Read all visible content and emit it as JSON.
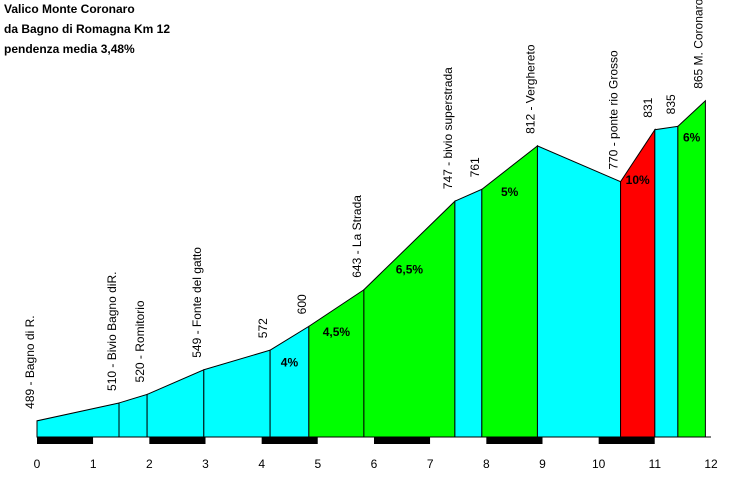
{
  "chart_data": {
    "type": "elevation-profile",
    "title": [
      "Valico Monte Coronaro",
      "da Bagno di Romagna Km 12",
      "pendenza media 3,48%"
    ],
    "x": [
      0,
      1.46,
      1.96,
      2.97,
      4.15,
      4.84,
      5.82,
      7.44,
      7.92,
      8.91,
      10.39,
      11.0,
      11.41,
      11.9
    ],
    "values": [
      489,
      510,
      520,
      549,
      572,
      600,
      643,
      747,
      761,
      812,
      770,
      831,
      835,
      865
    ],
    "labels": [
      "489 - Bagno di R.",
      "510 - Bivio Bagno diR.",
      "520 - Romitorio",
      "549 - Fonte del gatto",
      "572",
      "600",
      "643 - La Strada",
      "747 - bivio superstrada",
      "761",
      "812 - Verghereto",
      "770 - ponte rio Grosso",
      "831",
      "835",
      "865 M. Coronaro"
    ],
    "segment_colors": [
      "#00ffff",
      "#00ffff",
      "#00ffff",
      "#00ffff",
      "#00ffff",
      "#00ff00",
      "#00ff00",
      "#00ffff",
      "#00ff00",
      "#00ffff",
      "#ff0000",
      "#00ffff",
      "#00ff00"
    ],
    "segment_labels": [
      null,
      null,
      null,
      null,
      "4%",
      "4,5%",
      "6,5%",
      null,
      "5%",
      null,
      "10%",
      null,
      "6%"
    ],
    "xlim": [
      0,
      12
    ],
    "xticks": [
      0,
      1,
      2,
      3,
      4,
      5,
      6,
      7,
      8,
      9,
      10,
      11,
      12
    ],
    "ylim": [
      470,
      900
    ]
  }
}
